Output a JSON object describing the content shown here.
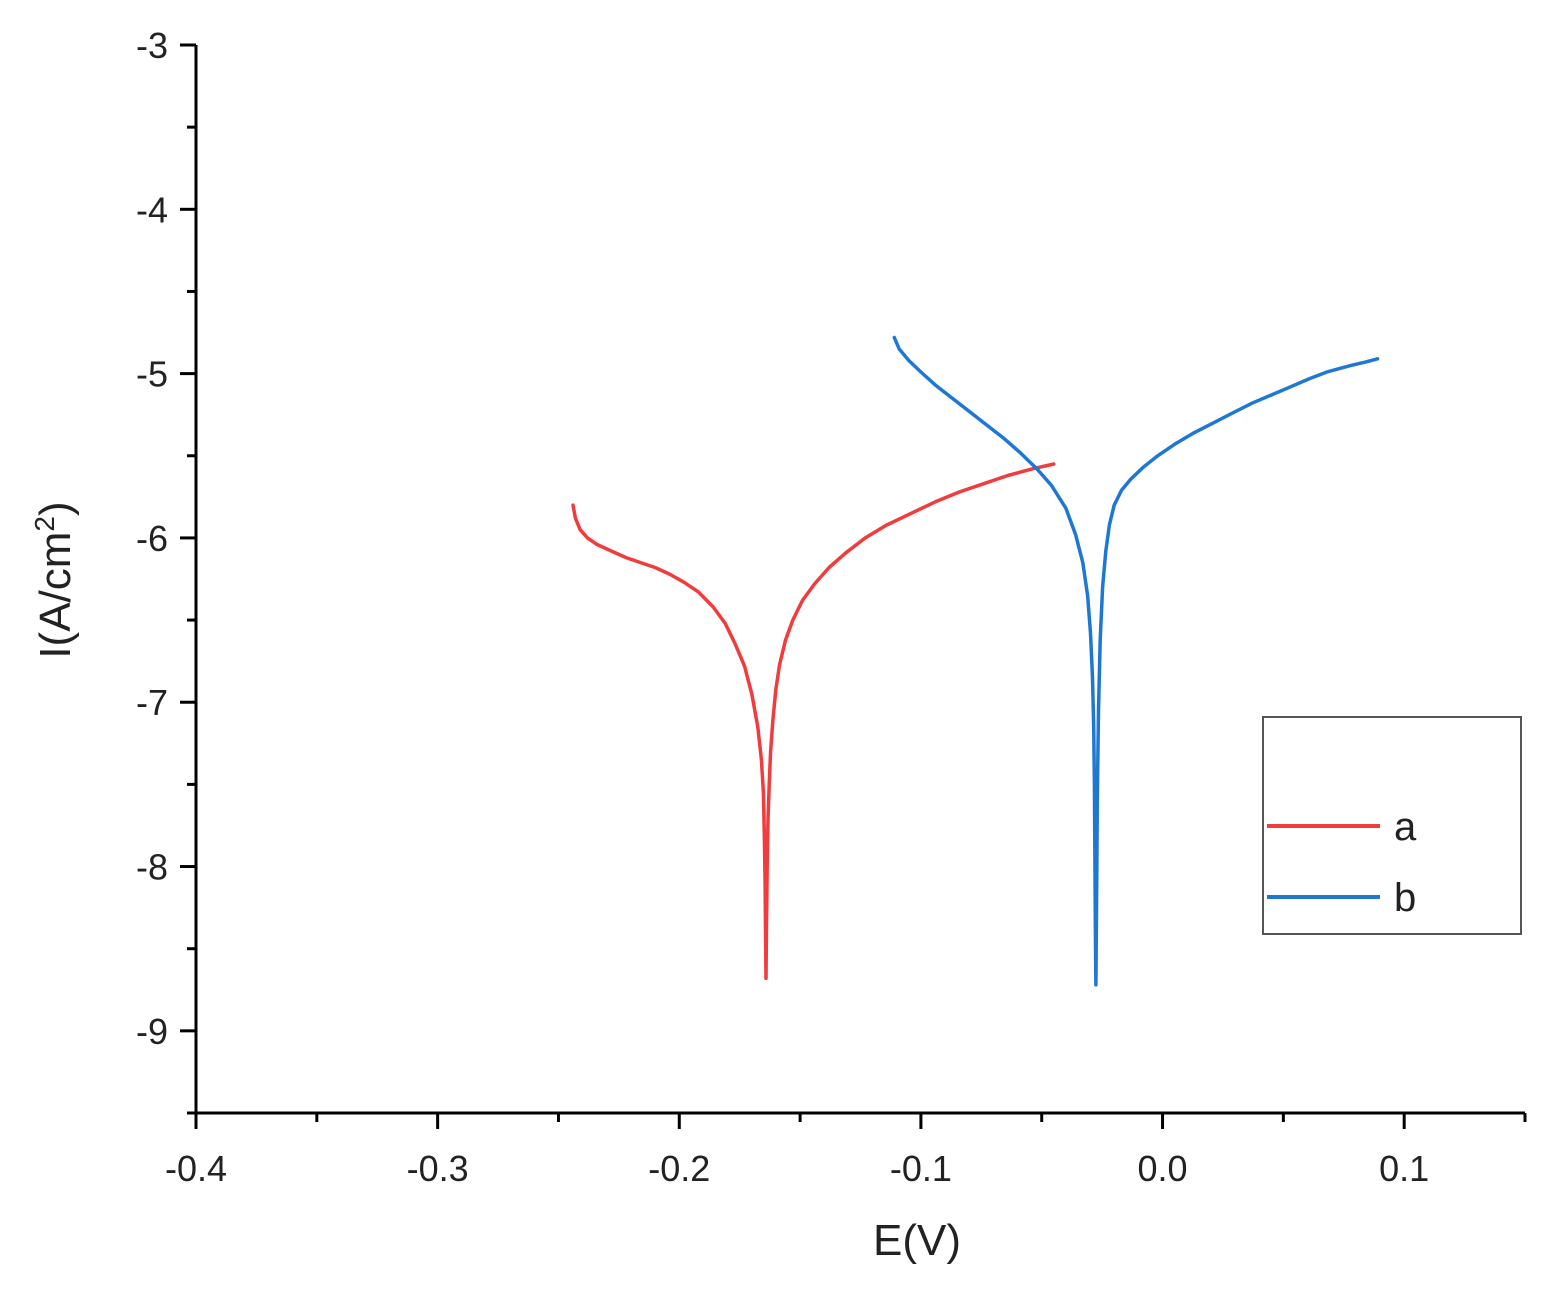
{
  "chart_data": {
    "type": "line",
    "title": "",
    "xlabel": "E(V)",
    "ylabel_main": "I(A/cm",
    "ylabel_sup": "2",
    "ylabel_close": ")",
    "xlim": [
      -0.4,
      0.15
    ],
    "ylim": [
      -9.5,
      -3
    ],
    "x_ticks": [
      -0.4,
      -0.3,
      -0.2,
      -0.1,
      0.0,
      0.1
    ],
    "x_tick_labels": [
      "-0.4",
      "-0.3",
      "-0.2",
      "-0.1",
      "0.0",
      "0.1"
    ],
    "x_minor_ticks": [
      -0.35,
      -0.25,
      -0.15,
      -0.05,
      0.05,
      0.15
    ],
    "y_ticks": [
      -9,
      -8,
      -7,
      -6,
      -5,
      -4,
      -3
    ],
    "y_tick_labels": [
      "-9",
      "-8",
      "-7",
      "-6",
      "-5",
      "-4",
      "-3"
    ],
    "y_minor_ticks": [
      -9.5,
      -8.5,
      -7.5,
      -6.5,
      -5.5,
      -4.5,
      -3.5
    ],
    "grid": false,
    "legend_position": "right",
    "series": [
      {
        "name": "a",
        "color": "#f03c3c",
        "x": [
          -0.244,
          -0.243,
          -0.241,
          -0.238,
          -0.234,
          -0.228,
          -0.222,
          -0.216,
          -0.21,
          -0.204,
          -0.198,
          -0.192,
          -0.186,
          -0.181,
          -0.177,
          -0.173,
          -0.17,
          -0.1675,
          -0.166,
          -0.1652,
          -0.1648,
          -0.1645,
          -0.1643,
          -0.1641,
          -0.1639,
          -0.1636,
          -0.1633,
          -0.1628,
          -0.1622,
          -0.1612,
          -0.16,
          -0.1585,
          -0.156,
          -0.153,
          -0.149,
          -0.144,
          -0.138,
          -0.131,
          -0.123,
          -0.114,
          -0.104,
          -0.094,
          -0.084,
          -0.074,
          -0.064,
          -0.054,
          -0.045
        ],
        "y": [
          -5.8,
          -5.88,
          -5.95,
          -6.0,
          -6.04,
          -6.08,
          -6.12,
          -6.15,
          -6.18,
          -6.22,
          -6.27,
          -6.33,
          -6.42,
          -6.52,
          -6.64,
          -6.78,
          -6.95,
          -7.15,
          -7.35,
          -7.55,
          -7.8,
          -8.1,
          -8.4,
          -8.68,
          -8.35,
          -8.0,
          -7.72,
          -7.5,
          -7.3,
          -7.1,
          -6.92,
          -6.77,
          -6.62,
          -6.5,
          -6.38,
          -6.28,
          -6.18,
          -6.09,
          -6.0,
          -5.92,
          -5.85,
          -5.78,
          -5.72,
          -5.67,
          -5.62,
          -5.58,
          -5.55
        ]
      },
      {
        "name": "b",
        "color": "#1f77d4",
        "x": [
          -0.111,
          -0.109,
          -0.105,
          -0.1,
          -0.094,
          -0.087,
          -0.08,
          -0.073,
          -0.066,
          -0.059,
          -0.052,
          -0.046,
          -0.04,
          -0.036,
          -0.033,
          -0.031,
          -0.0298,
          -0.029,
          -0.0285,
          -0.0282,
          -0.028,
          -0.0278,
          -0.0276,
          -0.0273,
          -0.027,
          -0.0265,
          -0.0258,
          -0.0248,
          -0.0235,
          -0.022,
          -0.02,
          -0.017,
          -0.013,
          -0.008,
          -0.002,
          0.005,
          0.013,
          0.021,
          0.029,
          0.037,
          0.045,
          0.053,
          0.061,
          0.068,
          0.073,
          0.078,
          0.084,
          0.089
        ],
        "y": [
          -4.78,
          -4.85,
          -4.92,
          -4.99,
          -5.07,
          -5.15,
          -5.23,
          -5.31,
          -5.39,
          -5.48,
          -5.58,
          -5.68,
          -5.82,
          -5.98,
          -6.15,
          -6.35,
          -6.58,
          -6.85,
          -7.15,
          -7.5,
          -7.95,
          -8.4,
          -8.72,
          -8.2,
          -7.6,
          -7.05,
          -6.62,
          -6.3,
          -6.08,
          -5.92,
          -5.8,
          -5.71,
          -5.64,
          -5.57,
          -5.5,
          -5.43,
          -5.36,
          -5.3,
          -5.24,
          -5.18,
          -5.13,
          -5.08,
          -5.03,
          -4.99,
          -4.97,
          -4.95,
          -4.93,
          -4.91
        ]
      }
    ]
  }
}
